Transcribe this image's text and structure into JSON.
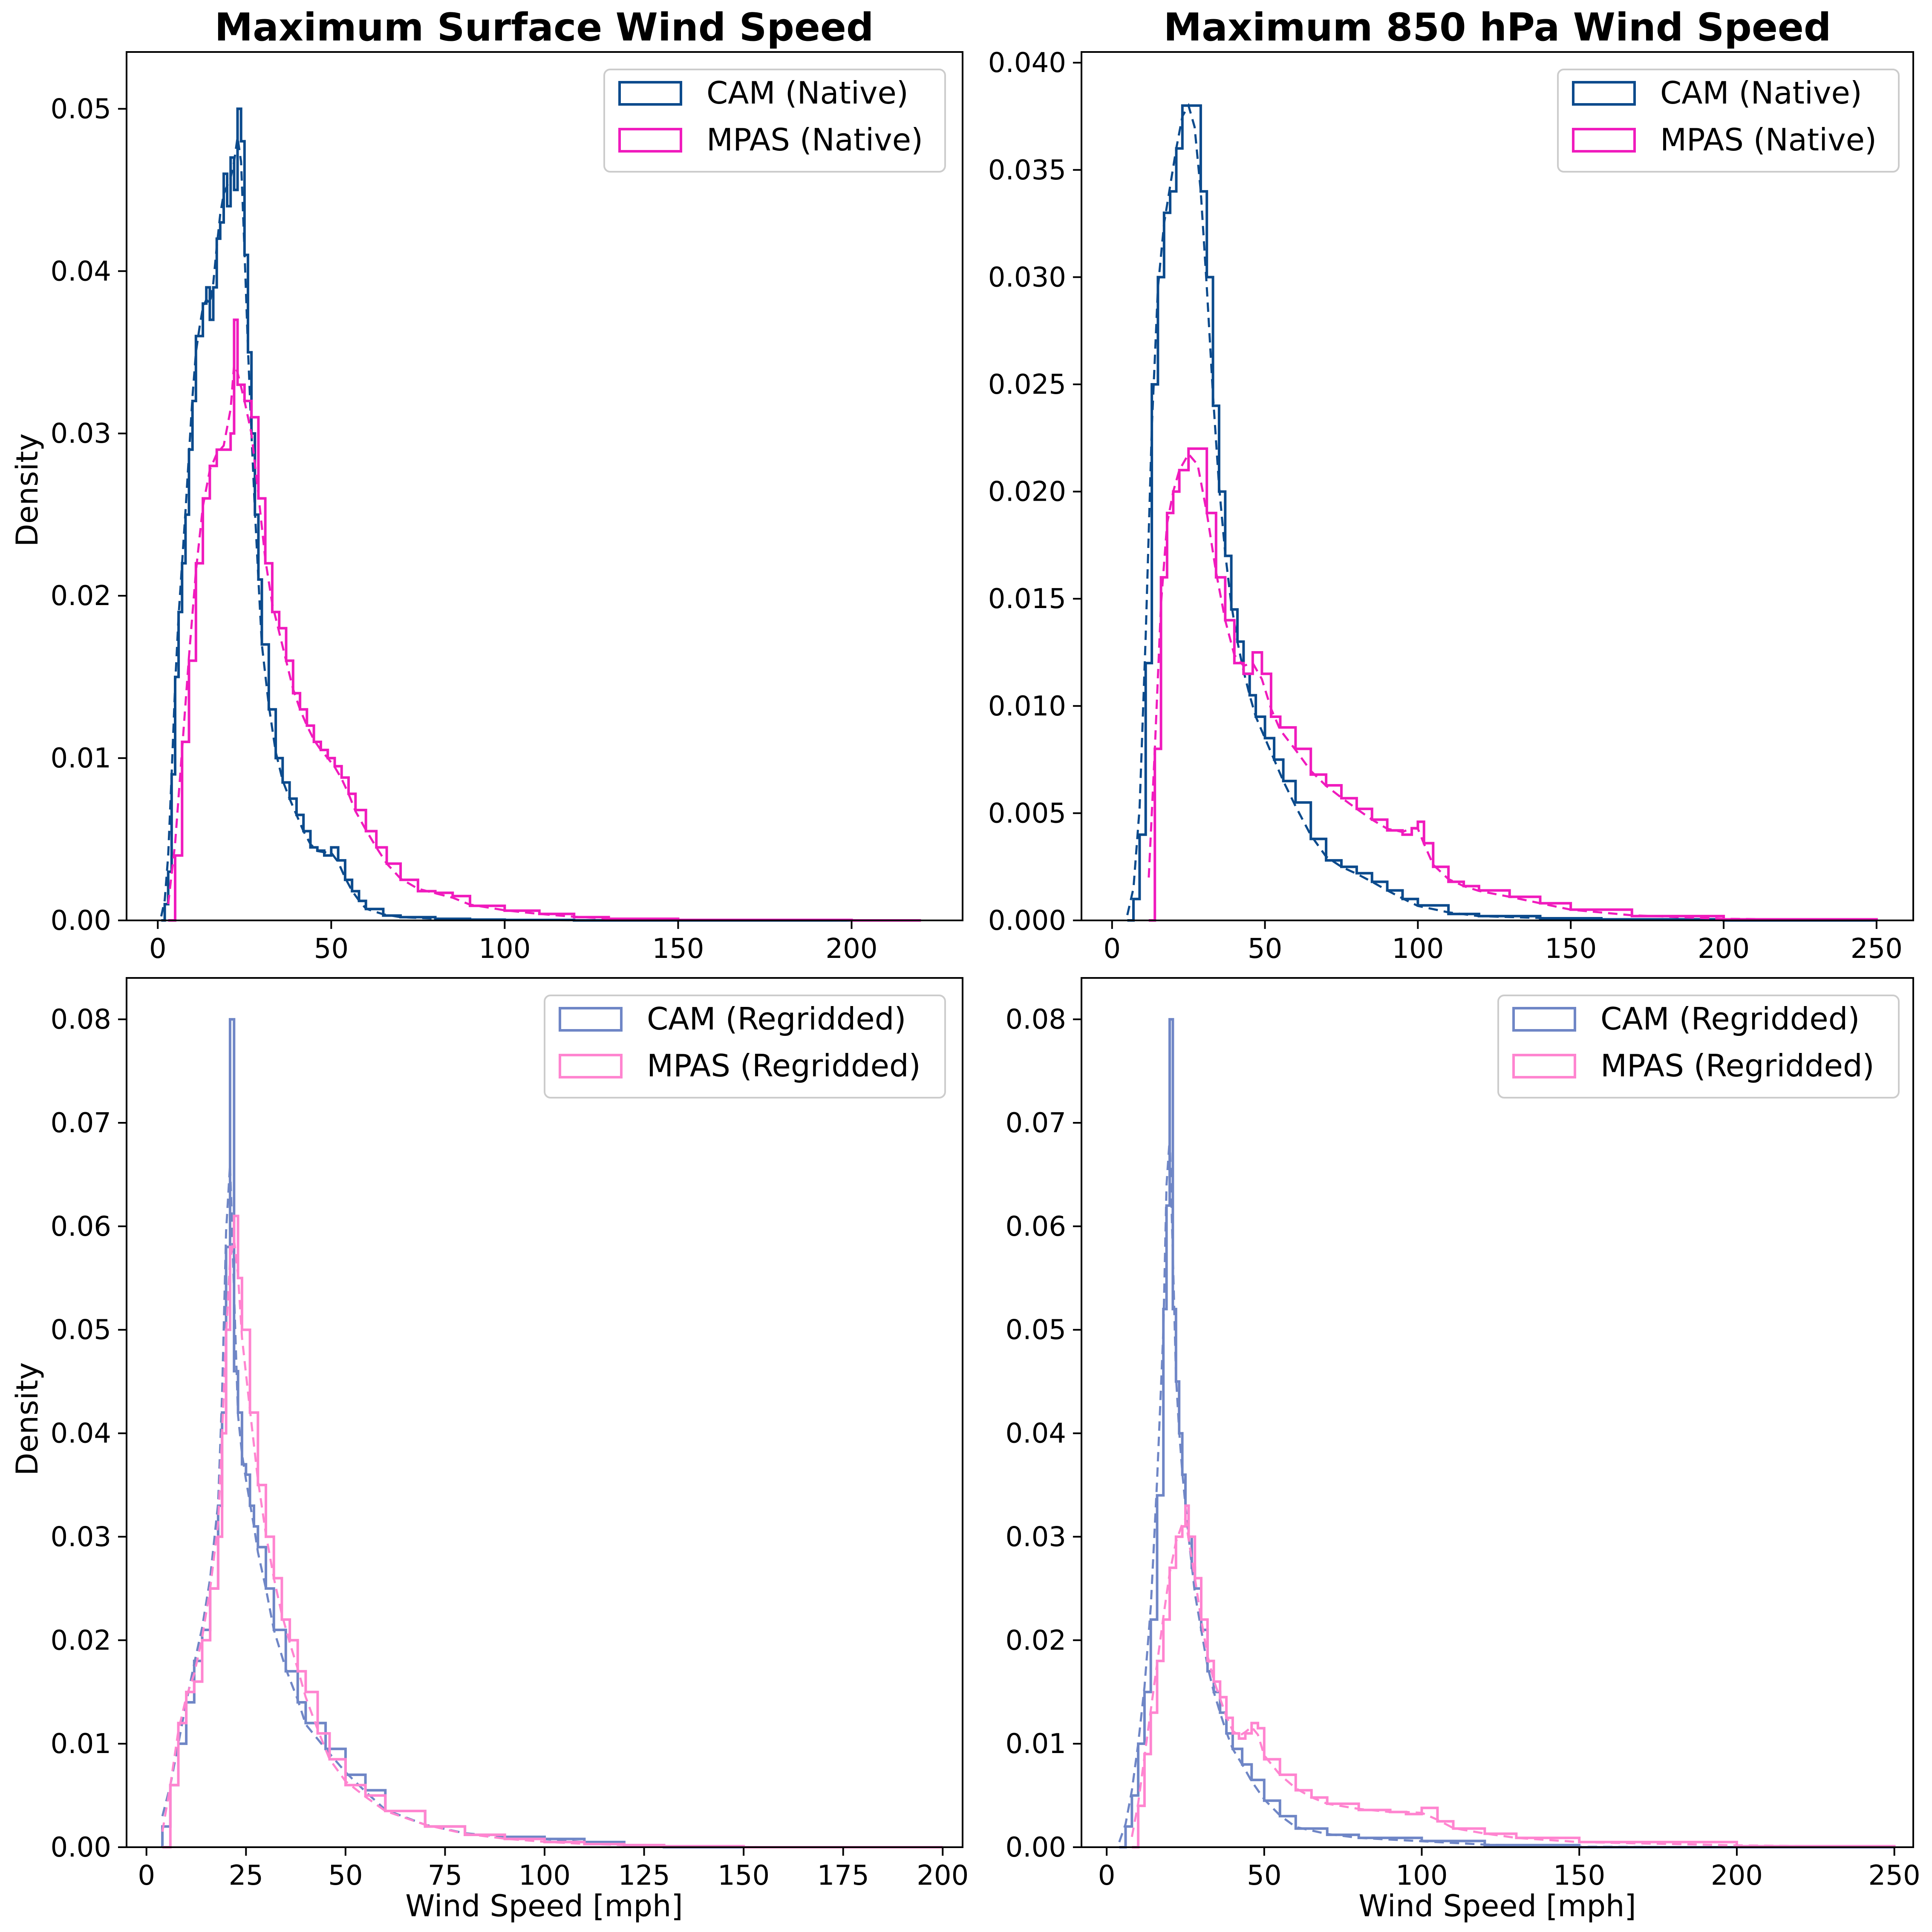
{
  "chart_data": [
    {
      "type": "histogram",
      "title": "Maximum Surface Wind Speed",
      "xlabel": "",
      "ylabel": "Density",
      "xlim": [
        -9,
        232
      ],
      "ylim": [
        0,
        0.0535
      ],
      "xticks": [
        0,
        50,
        100,
        150,
        200
      ],
      "yticks": [
        0.0,
        0.01,
        0.02,
        0.03,
        0.04,
        0.05
      ],
      "ytick_labels": [
        "0.00",
        "0.01",
        "0.02",
        "0.03",
        "0.04",
        "0.05"
      ],
      "legend_position": "top-right",
      "series": [
        {
          "name": "CAM (Native)",
          "color": "#0b4a8c",
          "style": "step-histogram with dashed KDE overlay",
          "x": [
            1,
            2,
            3,
            4,
            5,
            6,
            7,
            8,
            9,
            10,
            11,
            12,
            13,
            14,
            15,
            16,
            17,
            18,
            19,
            20,
            21,
            22,
            23,
            24,
            25,
            26,
            27,
            28,
            29,
            30,
            32,
            34,
            36,
            38,
            40,
            42,
            44,
            46,
            48,
            50,
            52,
            54,
            56,
            58,
            60,
            65,
            70,
            80,
            90,
            100,
            120,
            150,
            200
          ],
          "values": [
            0.0,
            0.001,
            0.003,
            0.009,
            0.015,
            0.019,
            0.022,
            0.025,
            0.029,
            0.032,
            0.036,
            0.036,
            0.038,
            0.039,
            0.037,
            0.039,
            0.042,
            0.043,
            0.046,
            0.044,
            0.047,
            0.045,
            0.05,
            0.048,
            0.041,
            0.035,
            0.03,
            0.025,
            0.021,
            0.017,
            0.013,
            0.01,
            0.0085,
            0.0075,
            0.0065,
            0.0055,
            0.0045,
            0.0043,
            0.004,
            0.0045,
            0.0037,
            0.0025,
            0.0018,
            0.0012,
            0.0007,
            0.0003,
            0.0002,
            0.0001,
            5e-05,
            3e-05,
            0.0,
            0.0,
            0.0
          ]
        },
        {
          "name": "MPAS (Native)",
          "color": "#f01bbd",
          "style": "step-histogram with dashed KDE overlay",
          "x": [
            3,
            5,
            7,
            9,
            11,
            13,
            15,
            17,
            19,
            21,
            22,
            23,
            25,
            27,
            29,
            31,
            33,
            35,
            37,
            39,
            41,
            43,
            45,
            47,
            49,
            51,
            53,
            55,
            57,
            60,
            63,
            66,
            70,
            75,
            80,
            85,
            90,
            100,
            110,
            120,
            130,
            150,
            200,
            220
          ],
          "values": [
            0.0,
            0.004,
            0.011,
            0.016,
            0.022,
            0.026,
            0.028,
            0.029,
            0.029,
            0.03,
            0.037,
            0.033,
            0.032,
            0.031,
            0.026,
            0.022,
            0.019,
            0.018,
            0.016,
            0.014,
            0.013,
            0.012,
            0.011,
            0.0105,
            0.01,
            0.0095,
            0.0088,
            0.0078,
            0.0068,
            0.0055,
            0.0045,
            0.0035,
            0.0025,
            0.0018,
            0.0017,
            0.0015,
            0.0009,
            0.0006,
            0.0004,
            0.0002,
            0.0001,
            3e-05,
            0.0,
            0.0
          ]
        }
      ]
    },
    {
      "type": "histogram",
      "title": "Maximum 850 hPa Wind Speed",
      "xlabel": "",
      "ylabel": "",
      "xlim": [
        -10,
        262
      ],
      "ylim": [
        0,
        0.0405
      ],
      "xticks": [
        0,
        50,
        100,
        150,
        200,
        250
      ],
      "yticks": [
        0.0,
        0.005,
        0.01,
        0.015,
        0.02,
        0.025,
        0.03,
        0.035,
        0.04
      ],
      "ytick_labels": [
        "0.000",
        "0.005",
        "0.010",
        "0.015",
        "0.020",
        "0.025",
        "0.030",
        "0.035",
        "0.040"
      ],
      "legend_position": "top-right",
      "series": [
        {
          "name": "CAM (Native)",
          "color": "#0b4a8c",
          "style": "step-histogram with dashed KDE overlay",
          "x": [
            5,
            7,
            9,
            11,
            13,
            15,
            17,
            19,
            21,
            23,
            25,
            27,
            29,
            31,
            33,
            35,
            37,
            39,
            41,
            43,
            45,
            47,
            50,
            53,
            56,
            60,
            65,
            70,
            75,
            80,
            85,
            90,
            95,
            100,
            110,
            120,
            140,
            160,
            200,
            250
          ],
          "values": [
            0.0,
            0.001,
            0.004,
            0.012,
            0.025,
            0.03,
            0.033,
            0.034,
            0.036,
            0.038,
            0.038,
            0.038,
            0.034,
            0.03,
            0.024,
            0.02,
            0.017,
            0.0145,
            0.013,
            0.0115,
            0.0105,
            0.0095,
            0.0085,
            0.0075,
            0.0065,
            0.0055,
            0.0038,
            0.0028,
            0.0025,
            0.0022,
            0.0018,
            0.0014,
            0.001,
            0.0007,
            0.0003,
            0.0002,
            0.0001,
            5e-05,
            0.0,
            0.0
          ]
        },
        {
          "name": "MPAS (Native)",
          "color": "#f01bbd",
          "style": "step-histogram with dashed KDE overlay",
          "x": [
            12,
            14,
            16,
            18,
            20,
            22,
            25,
            28,
            31,
            34,
            37,
            40,
            43,
            46,
            49,
            52,
            55,
            60,
            65,
            70,
            75,
            80,
            85,
            90,
            95,
            98,
            100,
            102,
            105,
            110,
            115,
            120,
            130,
            140,
            150,
            170,
            200,
            250
          ],
          "values": [
            0.0,
            0.008,
            0.016,
            0.019,
            0.02,
            0.021,
            0.022,
            0.022,
            0.019,
            0.016,
            0.014,
            0.012,
            0.0115,
            0.0125,
            0.0115,
            0.0095,
            0.009,
            0.008,
            0.0068,
            0.0063,
            0.0057,
            0.0052,
            0.0047,
            0.0042,
            0.004,
            0.0043,
            0.0046,
            0.0036,
            0.0025,
            0.0018,
            0.0016,
            0.0014,
            0.0011,
            0.0008,
            0.0005,
            0.0002,
            5e-05,
            0.0
          ]
        }
      ]
    },
    {
      "type": "histogram",
      "title": "",
      "xlabel": "Wind Speed [mph]",
      "ylabel": "Density",
      "xlim": [
        -5,
        205
      ],
      "ylim": [
        0,
        0.084
      ],
      "xticks": [
        0,
        25,
        50,
        75,
        100,
        125,
        150,
        175,
        200
      ],
      "yticks": [
        0.0,
        0.01,
        0.02,
        0.03,
        0.04,
        0.05,
        0.06,
        0.07,
        0.08
      ],
      "ytick_labels": [
        "0.00",
        "0.01",
        "0.02",
        "0.03",
        "0.04",
        "0.05",
        "0.06",
        "0.07",
        "0.08"
      ],
      "legend_position": "top-right",
      "series": [
        {
          "name": "CAM (Regridded)",
          "color": "#6f86c6",
          "style": "step-histogram with dashed KDE overlay",
          "x": [
            4,
            6,
            8,
            10,
            12,
            14,
            16,
            18,
            19,
            20,
            21,
            22,
            23,
            24,
            25,
            26,
            27,
            28,
            30,
            32,
            35,
            38,
            40,
            45,
            50,
            55,
            60,
            70,
            80,
            90,
            100,
            110,
            120,
            130,
            150,
            200
          ],
          "values": [
            0.002,
            0.006,
            0.01,
            0.014,
            0.018,
            0.021,
            0.025,
            0.033,
            0.042,
            0.058,
            0.08,
            0.046,
            0.042,
            0.037,
            0.036,
            0.033,
            0.031,
            0.029,
            0.025,
            0.021,
            0.017,
            0.014,
            0.012,
            0.0095,
            0.007,
            0.0055,
            0.0035,
            0.002,
            0.0012,
            0.001,
            0.0008,
            0.0005,
            0.0002,
            0.0,
            0.0,
            0.0
          ]
        },
        {
          "name": "MPAS (Regridded)",
          "color": "#ff85d0",
          "style": "step-histogram with dashed KDE overlay",
          "x": [
            4,
            6,
            8,
            10,
            12,
            14,
            16,
            18,
            19,
            20,
            21,
            22,
            23,
            24,
            26,
            28,
            30,
            32,
            34,
            36,
            38,
            40,
            43,
            46,
            50,
            55,
            60,
            70,
            80,
            90,
            100,
            110,
            120,
            130,
            150,
            200
          ],
          "values": [
            0.0,
            0.006,
            0.012,
            0.015,
            0.016,
            0.02,
            0.025,
            0.03,
            0.04,
            0.05,
            0.058,
            0.061,
            0.055,
            0.05,
            0.042,
            0.035,
            0.03,
            0.026,
            0.022,
            0.02,
            0.017,
            0.015,
            0.011,
            0.0085,
            0.006,
            0.005,
            0.0035,
            0.002,
            0.0012,
            0.0008,
            0.0005,
            0.0003,
            0.0002,
            0.0001,
            0.0,
            0.0
          ]
        }
      ]
    },
    {
      "type": "histogram",
      "title": "",
      "xlabel": "Wind Speed [mph]",
      "ylabel": "",
      "xlim": [
        -8,
        256
      ],
      "ylim": [
        0,
        0.084
      ],
      "xticks": [
        0,
        50,
        100,
        150,
        200,
        250
      ],
      "yticks": [
        0.0,
        0.01,
        0.02,
        0.03,
        0.04,
        0.05,
        0.06,
        0.07,
        0.08
      ],
      "ytick_labels": [
        "0.00",
        "0.01",
        "0.02",
        "0.03",
        "0.04",
        "0.05",
        "0.06",
        "0.07",
        "0.08"
      ],
      "legend_position": "top-right",
      "series": [
        {
          "name": "CAM (Regridded)",
          "color": "#6f86c6",
          "style": "step-histogram with dashed KDE overlay",
          "x": [
            4,
            6,
            8,
            10,
            12,
            14,
            16,
            18,
            19,
            20,
            21,
            22,
            23,
            24,
            25,
            26,
            27,
            28,
            30,
            32,
            34,
            36,
            38,
            40,
            43,
            46,
            50,
            55,
            60,
            70,
            80,
            100,
            120,
            150,
            200,
            250
          ],
          "values": [
            0.0,
            0.002,
            0.005,
            0.01,
            0.015,
            0.022,
            0.034,
            0.052,
            0.062,
            0.08,
            0.052,
            0.045,
            0.04,
            0.036,
            0.033,
            0.03,
            0.027,
            0.025,
            0.021,
            0.017,
            0.015,
            0.013,
            0.011,
            0.0095,
            0.008,
            0.0065,
            0.0045,
            0.003,
            0.0018,
            0.0012,
            0.0009,
            0.0006,
            0.0002,
            0.0,
            0.0,
            0.0
          ]
        },
        {
          "name": "MPAS (Regridded)",
          "color": "#ff85d0",
          "style": "step-histogram with dashed KDE overlay",
          "x": [
            8,
            10,
            12,
            14,
            16,
            18,
            20,
            22,
            24,
            25,
            26,
            28,
            30,
            32,
            34,
            36,
            38,
            40,
            42,
            44,
            46,
            48,
            50,
            55,
            60,
            65,
            70,
            80,
            90,
            95,
            100,
            105,
            110,
            120,
            130,
            150,
            200,
            250
          ],
          "values": [
            0.0,
            0.004,
            0.009,
            0.013,
            0.018,
            0.022,
            0.027,
            0.03,
            0.031,
            0.033,
            0.03,
            0.026,
            0.022,
            0.018,
            0.016,
            0.0145,
            0.0125,
            0.011,
            0.0105,
            0.011,
            0.012,
            0.0115,
            0.0085,
            0.007,
            0.0055,
            0.0048,
            0.0042,
            0.0036,
            0.0034,
            0.0032,
            0.0038,
            0.0025,
            0.0018,
            0.0013,
            0.0009,
            0.0005,
            0.0001,
            0.0
          ]
        }
      ]
    }
  ]
}
